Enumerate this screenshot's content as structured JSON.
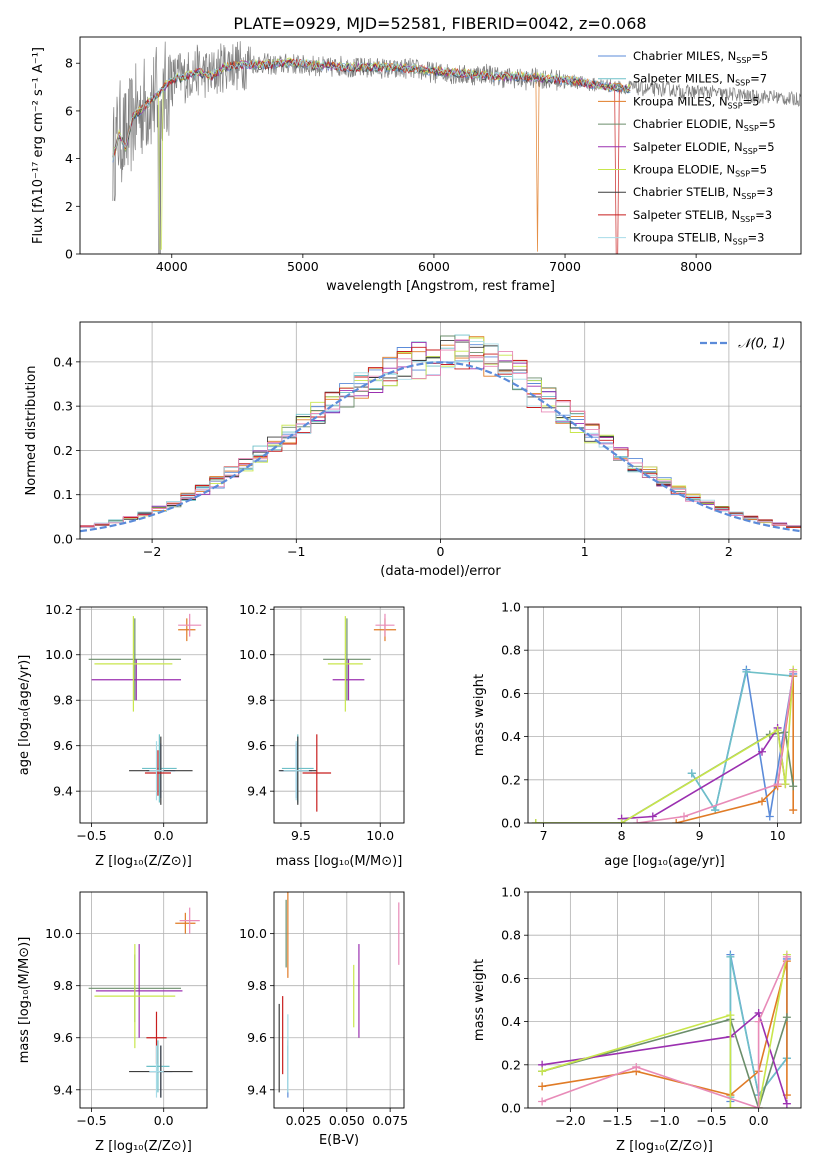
{
  "figure_title": "PLATE=0929, MJD=52581, FIBERID=0042, z=0.068",
  "palette": [
    "#5b8bd9",
    "#6fc0c8",
    "#e07b26",
    "#6b8e6b",
    "#9b30b0",
    "#c8e64c",
    "#3d3d3d",
    "#c81e1e",
    "#a7dce8",
    "#e88bb8"
  ],
  "chart_data": [
    {
      "id": "spectrum",
      "type": "line",
      "title": "",
      "xlabel": "wavelength [Angstrom, rest frame]",
      "ylabel": "Flux [fλ10⁻¹⁷ erg cm⁻² s⁻¹ A⁻¹]",
      "xlim": [
        3300,
        8800
      ],
      "ylim": [
        0,
        9.1
      ],
      "xticks": [
        4000,
        5000,
        6000,
        7000,
        8000
      ],
      "yticks": [
        0,
        2,
        4,
        6,
        8
      ],
      "grid": false,
      "legend_position": "top-right",
      "legend": [
        {
          "label": "Chabrier MILES, N",
          "sub": "SSP",
          "suffix": "=5",
          "color": "#5b8bd9"
        },
        {
          "label": "Salpeter MILES, N",
          "sub": "SSP",
          "suffix": "=7",
          "color": "#6fc0c8"
        },
        {
          "label": "Kroupa MILES, N",
          "sub": "SSP",
          "suffix": "=5",
          "color": "#e07b26"
        },
        {
          "label": "Chabrier ELODIE, N",
          "sub": "SSP",
          "suffix": "=5",
          "color": "#6b8e6b"
        },
        {
          "label": "Salpeter ELODIE, N",
          "sub": "SSP",
          "suffix": "=5",
          "color": "#9b30b0"
        },
        {
          "label": "Kroupa ELODIE, N",
          "sub": "SSP",
          "suffix": "=5",
          "color": "#c8e64c"
        },
        {
          "label": "Chabrier STELIB, N",
          "sub": "SSP",
          "suffix": "=3",
          "color": "#3d3d3d"
        },
        {
          "label": "Salpeter STELIB, N",
          "sub": "SSP",
          "suffix": "=3",
          "color": "#c81e1e"
        },
        {
          "label": "Kroupa STELIB, N",
          "sub": "SSP",
          "suffix": "=3",
          "color": "#a7dce8"
        }
      ],
      "data_spectrum": {
        "x": [
          3550,
          3600,
          3650,
          3700,
          3750,
          3800,
          3850,
          3900,
          3950,
          4000,
          4050,
          4100,
          4150,
          4200,
          4250,
          4300,
          4350,
          4400,
          4450,
          4500,
          4600,
          4700,
          4800,
          4900,
          5000,
          5100,
          5200,
          5300,
          5400,
          5500,
          5600,
          5700,
          5800,
          5900,
          6000,
          6100,
          6200,
          6300,
          6400,
          6500,
          6600,
          6700,
          6800,
          6900,
          7000,
          7100,
          7200,
          7300,
          7400,
          7500,
          7600,
          7700,
          7800,
          7900,
          8000,
          8100,
          8200,
          8300,
          8400,
          8500,
          8600,
          8700,
          8800
        ],
        "y": [
          4.0,
          5.2,
          4.8,
          5.6,
          6.0,
          6.3,
          6.5,
          6.6,
          6.8,
          7.2,
          7.5,
          7.4,
          7.6,
          7.7,
          7.6,
          7.5,
          7.7,
          7.9,
          8.0,
          7.9,
          8.0,
          8.0,
          7.9,
          8.0,
          7.9,
          7.9,
          7.8,
          7.9,
          7.8,
          7.8,
          7.8,
          7.7,
          7.8,
          7.7,
          7.6,
          7.6,
          7.5,
          7.5,
          7.6,
          7.4,
          7.4,
          7.3,
          7.4,
          7.3,
          7.3,
          7.2,
          7.1,
          7.1,
          7.0,
          7.0,
          6.9,
          6.9,
          6.9,
          6.8,
          6.8,
          6.8,
          6.7,
          6.7,
          6.6,
          6.6,
          6.6,
          6.5,
          6.5
        ]
      },
      "models": {
        "x": [
          3550,
          3600,
          3650,
          3700,
          3800,
          3900,
          4000,
          4100,
          4200,
          4300,
          4400,
          4500,
          4700,
          4900,
          5100,
          5300,
          5500,
          5700,
          5900,
          6100,
          6300,
          6500,
          6700,
          6900,
          7100,
          7300,
          7500
        ],
        "y": [
          4.0,
          5.0,
          4.4,
          5.7,
          6.2,
          6.7,
          7.3,
          7.4,
          7.6,
          7.4,
          7.8,
          7.9,
          7.9,
          8.0,
          7.9,
          7.8,
          7.8,
          7.8,
          7.7,
          7.6,
          7.5,
          7.4,
          7.4,
          7.3,
          7.2,
          7.0,
          6.9
        ]
      }
    },
    {
      "id": "residuals",
      "type": "step",
      "xlabel": "(data-model)/error",
      "ylabel": "Normed distribution",
      "xlim": [
        -2.5,
        2.5
      ],
      "ylim": [
        0,
        0.49
      ],
      "xticks": [
        -2,
        -1,
        0,
        1,
        2
      ],
      "yticks": [
        0.0,
        0.1,
        0.2,
        0.3,
        0.4
      ],
      "grid": true,
      "legend_position": "top-right",
      "legend_label": "𝒩(0, 1)",
      "gaussian_color": "#5b8bd9"
    },
    {
      "id": "age-vs-Z",
      "type": "errorbar",
      "xlabel": "Z [log₁₀(Z/Z⊙)]",
      "ylabel": "age  [log₁₀(age/yr)]",
      "xlim": [
        -0.58,
        0.3
      ],
      "ylim": [
        9.26,
        10.21
      ],
      "xticks": [
        -0.5,
        0.0
      ],
      "yticks": [
        9.4,
        9.6,
        9.8,
        10.0,
        10.2
      ],
      "grid": true,
      "points": [
        {
          "color": "#5b8bd9",
          "x": -0.02,
          "xerr": 0.1,
          "y": 9.49,
          "yerr": 0.12
        },
        {
          "color": "#6fc0c8",
          "x": -0.03,
          "xerr": 0.12,
          "y": 9.5,
          "yerr": 0.15
        },
        {
          "color": "#e07b26",
          "x": 0.16,
          "xerr": 0.06,
          "y": 10.11,
          "yerr": 0.05
        },
        {
          "color": "#6b8e6b",
          "x": -0.2,
          "xerr": 0.32,
          "y": 9.98,
          "yerr": 0.18
        },
        {
          "color": "#9b30b0",
          "x": -0.19,
          "xerr": 0.31,
          "y": 9.89,
          "yerr": 0.09
        },
        {
          "color": "#c8e64c",
          "x": -0.21,
          "xerr": 0.27,
          "y": 9.96,
          "yerr": 0.21
        },
        {
          "color": "#3d3d3d",
          "x": -0.02,
          "xerr": 0.22,
          "y": 9.49,
          "yerr": 0.15
        },
        {
          "color": "#c81e1e",
          "x": -0.04,
          "xerr": 0.09,
          "y": 9.48,
          "yerr": 0.1
        },
        {
          "color": "#a7dce8",
          "x": -0.05,
          "xerr": 0.05,
          "y": 9.49,
          "yerr": 0.13
        },
        {
          "color": "#e88bb8",
          "x": 0.18,
          "xerr": 0.08,
          "y": 10.13,
          "yerr": 0.05
        }
      ]
    },
    {
      "id": "age-vs-mass",
      "type": "errorbar",
      "xlabel": "mass [log₁₀(M/M⊙)]",
      "ylabel": "",
      "xlim": [
        9.33,
        10.15
      ],
      "ylim": [
        9.26,
        10.21
      ],
      "xticks": [
        9.5,
        10.0
      ],
      "yticks": [
        9.4,
        9.6,
        9.8,
        10.0,
        10.2
      ],
      "grid": true,
      "points": [
        {
          "color": "#5b8bd9",
          "x": 9.47,
          "xerr": 0.1,
          "y": 9.49,
          "yerr": 0.12
        },
        {
          "color": "#6fc0c8",
          "x": 9.48,
          "xerr": 0.1,
          "y": 9.5,
          "yerr": 0.15
        },
        {
          "color": "#e07b26",
          "x": 10.03,
          "xerr": 0.07,
          "y": 10.11,
          "yerr": 0.05
        },
        {
          "color": "#6b8e6b",
          "x": 9.79,
          "xerr": 0.15,
          "y": 9.98,
          "yerr": 0.18
        },
        {
          "color": "#9b30b0",
          "x": 9.8,
          "xerr": 0.1,
          "y": 9.89,
          "yerr": 0.09
        },
        {
          "color": "#c8e64c",
          "x": 9.78,
          "xerr": 0.11,
          "y": 9.96,
          "yerr": 0.21
        },
        {
          "color": "#3d3d3d",
          "x": 9.48,
          "xerr": 0.12,
          "y": 9.49,
          "yerr": 0.15
        },
        {
          "color": "#c81e1e",
          "x": 9.6,
          "xerr": 0.09,
          "y": 9.48,
          "yerr": 0.17
        },
        {
          "color": "#a7dce8",
          "x": 9.47,
          "xerr": 0.08,
          "y": 9.49,
          "yerr": 0.13
        },
        {
          "color": "#e88bb8",
          "x": 10.03,
          "xerr": 0.06,
          "y": 10.13,
          "yerr": 0.05
        }
      ]
    },
    {
      "id": "mass-weight-vs-age",
      "type": "line",
      "xlabel": "age  [log₁₀(age/yr)]",
      "ylabel": "mass weight",
      "xlim": [
        6.8,
        10.3
      ],
      "ylim": [
        0,
        1.0
      ],
      "xticks": [
        7,
        8,
        9,
        10
      ],
      "yticks": [
        0.0,
        0.2,
        0.4,
        0.6,
        0.8,
        1.0
      ],
      "grid": true,
      "series": [
        {
          "color": "#5b8bd9",
          "x": [
            8.9,
            9.2,
            9.6,
            9.9,
            10.2
          ],
          "y": [
            0.23,
            0.06,
            0.71,
            0.03,
            0.69
          ]
        },
        {
          "color": "#6fc0c8",
          "x": [
            8.9,
            9.2,
            9.6,
            10.2
          ],
          "y": [
            0.23,
            0.06,
            0.7,
            0.68
          ]
        },
        {
          "color": "#e07b26",
          "x": [
            8.7,
            9.8,
            10.0,
            10.2,
            10.2
          ],
          "y": [
            0.0,
            0.1,
            0.17,
            0.68,
            0.06
          ]
        },
        {
          "color": "#6b8e6b",
          "x": [
            6.9,
            8.0,
            9.9,
            10.1,
            10.2
          ],
          "y": [
            0.0,
            0.0,
            0.41,
            0.42,
            0.17
          ]
        },
        {
          "color": "#9b30b0",
          "x": [
            8.0,
            8.4,
            9.8,
            10.0,
            10.1
          ],
          "y": [
            0.02,
            0.03,
            0.33,
            0.44,
            0.18
          ]
        },
        {
          "color": "#c8e64c",
          "x": [
            6.9,
            8.0,
            10.0,
            10.1,
            10.2
          ],
          "y": [
            0.0,
            0.0,
            0.43,
            0.18,
            0.71
          ]
        },
        {
          "color": "#e88bb8",
          "x": [
            8.2,
            8.8,
            10.0,
            10.2
          ],
          "y": [
            0.0,
            0.03,
            0.18,
            0.7
          ]
        }
      ]
    },
    {
      "id": "mass-vs-Z",
      "type": "errorbar",
      "xlabel": "Z [log₁₀(Z/Z⊙)]",
      "ylabel": "mass [log₁₀(M/M⊙)]",
      "xlim": [
        -0.58,
        0.3
      ],
      "ylim": [
        9.33,
        10.16
      ],
      "xticks": [
        -0.5,
        0.0
      ],
      "yticks": [
        9.4,
        9.6,
        9.8,
        10.0
      ],
      "grid": true,
      "points": [
        {
          "color": "#5b8bd9",
          "x": -0.02,
          "xerr": 0.08,
          "y": 9.47,
          "yerr": 0.1
        },
        {
          "color": "#6fc0c8",
          "x": -0.04,
          "xerr": 0.08,
          "y": 9.49,
          "yerr": 0.1
        },
        {
          "color": "#e07b26",
          "x": 0.15,
          "xerr": 0.07,
          "y": 10.04,
          "yerr": 0.04
        },
        {
          "color": "#6b8e6b",
          "x": -0.2,
          "xerr": 0.32,
          "y": 9.79,
          "yerr": 0.13
        },
        {
          "color": "#9b30b0",
          "x": -0.17,
          "xerr": 0.3,
          "y": 9.78,
          "yerr": 0.18
        },
        {
          "color": "#c8e64c",
          "x": -0.2,
          "xerr": 0.28,
          "y": 9.76,
          "yerr": 0.2
        },
        {
          "color": "#3d3d3d",
          "x": -0.02,
          "xerr": 0.22,
          "y": 9.47,
          "yerr": 0.1
        },
        {
          "color": "#c81e1e",
          "x": -0.05,
          "xerr": 0.07,
          "y": 9.6,
          "yerr": 0.1
        },
        {
          "color": "#a7dce8",
          "x": -0.05,
          "xerr": 0.05,
          "y": 9.47,
          "yerr": 0.1
        },
        {
          "color": "#e88bb8",
          "x": 0.18,
          "xerr": 0.07,
          "y": 10.05,
          "yerr": 0.05
        }
      ]
    },
    {
      "id": "mass-vs-EBV",
      "type": "errorbar",
      "xlabel": "E(B-V)",
      "ylabel": "",
      "xlim": [
        0.008,
        0.083
      ],
      "ylim": [
        9.33,
        10.16
      ],
      "xticks": [
        0.025,
        0.05,
        0.075
      ],
      "yticks": [
        9.4,
        9.6,
        9.8,
        10.0
      ],
      "grid": true,
      "points": [
        {
          "color": "#5b8bd9",
          "x": 0.016,
          "y": 9.47,
          "yerr": 0.1
        },
        {
          "color": "#6fc0c8",
          "x": 0.016,
          "y": 9.49,
          "yerr": 0.1
        },
        {
          "color": "#e07b26",
          "x": 0.016,
          "y": 10.0,
          "yerr": 0.17
        },
        {
          "color": "#6b8e6b",
          "x": 0.015,
          "y": 10.0,
          "yerr": 0.13
        },
        {
          "color": "#9b30b0",
          "x": 0.057,
          "y": 9.78,
          "yerr": 0.18
        },
        {
          "color": "#c8e64c",
          "x": 0.054,
          "y": 9.76,
          "yerr": 0.12
        },
        {
          "color": "#3d3d3d",
          "x": 0.011,
          "y": 9.56,
          "yerr": 0.17
        },
        {
          "color": "#c81e1e",
          "x": 0.013,
          "y": 9.61,
          "yerr": 0.15
        },
        {
          "color": "#a7dce8",
          "x": 0.016,
          "y": 9.54,
          "yerr": 0.15
        },
        {
          "color": "#e88bb8",
          "x": 0.08,
          "y": 10.0,
          "yerr": 0.12
        }
      ]
    },
    {
      "id": "mass-weight-vs-Z",
      "type": "line",
      "xlabel": "Z [log₁₀(Z/Z⊙)]",
      "ylabel": "mass weight",
      "xlim": [
        -2.45,
        0.45
      ],
      "ylim": [
        0,
        1.0
      ],
      "xticks": [
        -2.0,
        -1.5,
        -1.0,
        -0.5,
        0.0
      ],
      "yticks": [
        0.0,
        0.2,
        0.4,
        0.6,
        0.8,
        1.0
      ],
      "grid": true,
      "series": [
        {
          "color": "#5b8bd9",
          "x": [
            -0.3,
            -0.3,
            0.0,
            0.3,
            0.3
          ],
          "y": [
            0.03,
            0.71,
            0.06,
            0.23,
            0.69
          ]
        },
        {
          "color": "#6fc0c8",
          "x": [
            -0.3,
            -0.3,
            0.0,
            0.3
          ],
          "y": [
            0.05,
            0.7,
            0.06,
            0.23
          ]
        },
        {
          "color": "#e07b26",
          "x": [
            -2.3,
            -1.3,
            -0.3,
            0.0,
            0.3,
            0.3
          ],
          "y": [
            0.1,
            0.17,
            0.06,
            0.17,
            0.68,
            0.06
          ]
        },
        {
          "color": "#6b8e6b",
          "x": [
            -2.3,
            -0.3,
            0.0,
            0.3
          ],
          "y": [
            0.17,
            0.41,
            0.0,
            0.42
          ]
        },
        {
          "color": "#9b30b0",
          "x": [
            -2.3,
            -0.3,
            0.0,
            0.3
          ],
          "y": [
            0.2,
            0.33,
            0.44,
            0.02
          ]
        },
        {
          "color": "#c8e64c",
          "x": [
            -2.3,
            -0.3,
            -0.3,
            0.0,
            0.3
          ],
          "y": [
            0.17,
            0.43,
            0.0,
            0.0,
            0.71
          ]
        },
        {
          "color": "#e88bb8",
          "x": [
            -2.3,
            -1.3,
            0.0,
            0.0,
            0.3
          ],
          "y": [
            0.03,
            0.19,
            0.0,
            0.4,
            0.7
          ]
        }
      ]
    }
  ]
}
